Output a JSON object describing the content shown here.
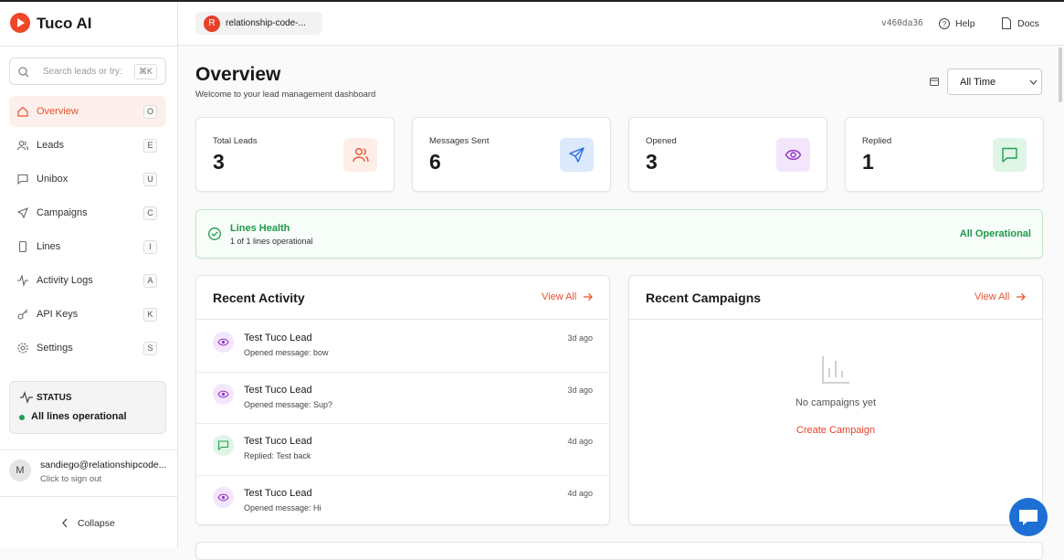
{
  "brand": "Tuco AI",
  "search": {
    "placeholder": "Search leads or try:",
    "shortcut": "⌘K"
  },
  "nav": [
    {
      "label": "Overview",
      "key": "O"
    },
    {
      "label": "Leads",
      "key": "E"
    },
    {
      "label": "Unibox",
      "key": "U"
    },
    {
      "label": "Campaigns",
      "key": "C"
    },
    {
      "label": "Lines",
      "key": "I"
    },
    {
      "label": "Activity Logs",
      "key": "A"
    },
    {
      "label": "API Keys",
      "key": "K"
    },
    {
      "label": "Settings",
      "key": "S"
    }
  ],
  "status": {
    "title": "STATUS",
    "text": "All lines operational"
  },
  "user": {
    "initial": "M",
    "email": "sandiego@relationshipcode...",
    "hint": "Click to sign out"
  },
  "collapse": "Collapse",
  "topbar": {
    "workspace_initial": "R",
    "workspace": "relationship-code-...",
    "version": "v460da36",
    "help": "Help",
    "docs": "Docs"
  },
  "header": {
    "title": "Overview",
    "subtitle": "Welcome to your lead management dashboard",
    "range": "All Time"
  },
  "stats": [
    {
      "label": "Total Leads",
      "value": 3
    },
    {
      "label": "Messages Sent",
      "value": 6
    },
    {
      "label": "Opened",
      "value": 3
    },
    {
      "label": "Replied",
      "value": 1
    }
  ],
  "health": {
    "title": "Lines Health",
    "detail": "1 of 1 lines operational",
    "status": "All Operational"
  },
  "activity": {
    "title": "Recent Activity",
    "view_all": "View All",
    "items": [
      {
        "name": "Test Tuco Lead",
        "detail": "Opened message: bow",
        "time": "3d ago"
      },
      {
        "name": "Test Tuco Lead",
        "detail": "Opened message: Sup?",
        "time": "3d ago"
      },
      {
        "name": "Test Tuco Lead",
        "detail": "Replied: Test back",
        "time": "4d ago"
      },
      {
        "name": "Test Tuco Lead",
        "detail": "Opened message: Hi",
        "time": "4d ago"
      }
    ]
  },
  "campaigns": {
    "title": "Recent Campaigns",
    "view_all": "View All",
    "empty": "No campaigns yet",
    "action": "Create Campaign"
  }
}
